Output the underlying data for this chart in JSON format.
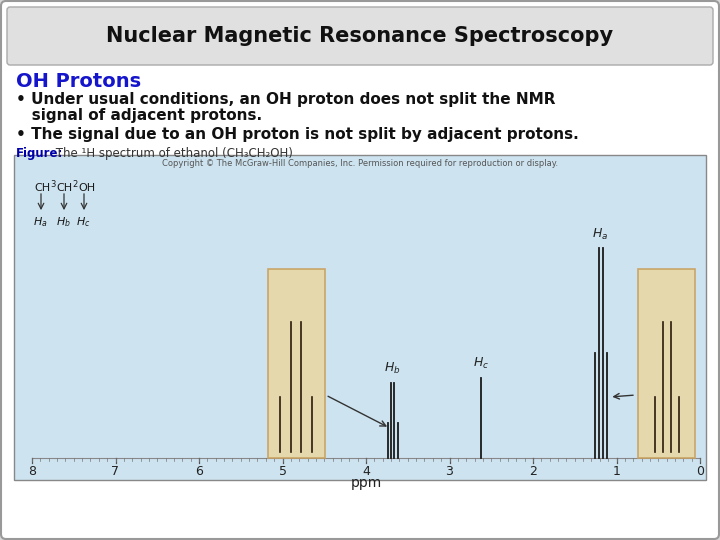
{
  "title": "Nuclear Magnetic Resonance Spectroscopy",
  "subtitle": "OH Protons",
  "bullet1a": "• Under usual conditions, an OH proton does not split the NMR",
  "bullet1b": "   signal of adjacent protons.",
  "bullet2": "• The signal due to an OH proton is not split by adjacent protons.",
  "figure_label": "Figure:",
  "figure_caption": " The ¹H spectrum of ethanol (CH₃CH₂OH)",
  "copyright": "Copyright © The McGraw-Hill Companies, Inc. Permission required for reproduction or display.",
  "bg_color": "#d8d8d8",
  "title_bg": "#e0e0e0",
  "slide_bg": "#ffffff",
  "spectrum_bg": "#cde4f0",
  "inset_bg": "#e8d8a8",
  "subtitle_color": "#1515cc",
  "title_color": "#111111",
  "body_color": "#111111",
  "figure_label_color": "#0000aa",
  "figure_text_color": "#333333",
  "ppm_ticks": [
    0,
    1,
    2,
    3,
    4,
    5,
    6,
    7,
    8
  ]
}
